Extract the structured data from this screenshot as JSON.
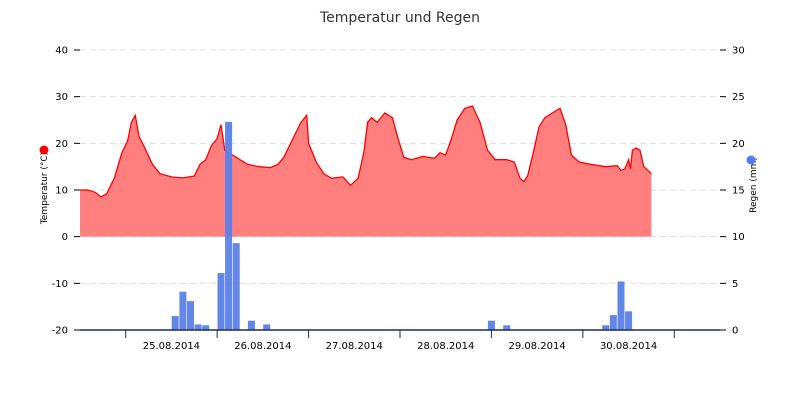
{
  "chart_data": {
    "type": "area+bar",
    "title": "Temperatur und Regen",
    "y_left": {
      "label": "Temperatur (°C)",
      "min": -20,
      "max": 40,
      "ticks": [
        -20,
        -10,
        0,
        10,
        20,
        30,
        40
      ],
      "marker_color": "#ff0000"
    },
    "y_right": {
      "label": "Regen (mm)",
      "min": 0,
      "max": 30,
      "ticks": [
        0,
        5,
        10,
        15,
        20,
        25,
        30
      ],
      "marker_color": "#4f7cf0"
    },
    "x_range": [
      "2014-08-24T12:00",
      "2014-08-31T12:00"
    ],
    "x_tick_labels": [
      "25.08.2014",
      "26.08.2014",
      "27.08.2014",
      "28.08.2014",
      "29.08.2014",
      "30.08.2014"
    ],
    "grid": true,
    "series": [
      {
        "name": "Temperatur",
        "kind": "area",
        "color": "#ff0000",
        "fill": "#ff7f7f",
        "unit": "°C",
        "points": [
          [
            "24.08 12:00",
            10.0
          ],
          [
            "24.08 14:00",
            10.0
          ],
          [
            "24.08 16:00",
            9.5
          ],
          [
            "24.08 17:30",
            8.5
          ],
          [
            "24.08 19:00",
            9.2
          ],
          [
            "24.08 21:00",
            12.5
          ],
          [
            "24.08 23:00",
            18.0
          ],
          [
            "25.08 00:30",
            20.5
          ],
          [
            "25.08 01:30",
            24.5
          ],
          [
            "25.08 02:30",
            26.0
          ],
          [
            "25.08 03:30",
            21.5
          ],
          [
            "25.08 05:00",
            19.0
          ],
          [
            "25.08 07:00",
            15.5
          ],
          [
            "25.08 09:00",
            13.5
          ],
          [
            "25.08 12:00",
            12.8
          ],
          [
            "25.08 15:00",
            12.6
          ],
          [
            "25.08 18:00",
            13.0
          ],
          [
            "25.08 19:30",
            15.5
          ],
          [
            "25.08 21:00",
            16.5
          ],
          [
            "25.08 22:30",
            19.5
          ],
          [
            "26.08 00:00",
            21.0
          ],
          [
            "26.08 01:00",
            24.0
          ],
          [
            "26.08 02:00",
            18.5
          ],
          [
            "26.08 04:00",
            17.5
          ],
          [
            "26.08 06:00",
            16.5
          ],
          [
            "26.08 08:00",
            15.5
          ],
          [
            "26.08 11:00",
            15.0
          ],
          [
            "26.08 14:00",
            14.8
          ],
          [
            "26.08 16:00",
            15.5
          ],
          [
            "26.08 17:30",
            17.0
          ],
          [
            "26.08 19:00",
            19.5
          ],
          [
            "26.08 20:30",
            22.0
          ],
          [
            "26.08 22:00",
            24.5
          ],
          [
            "26.08 23:30",
            26.0
          ],
          [
            "27.08 00:00",
            20.0
          ],
          [
            "27.08 02:00",
            16.0
          ],
          [
            "27.08 04:00",
            13.5
          ],
          [
            "27.08 06:00",
            12.5
          ],
          [
            "27.08 09:00",
            12.8
          ],
          [
            "27.08 11:00",
            11.0
          ],
          [
            "27.08 13:00",
            12.5
          ],
          [
            "27.08 14:30",
            18.0
          ],
          [
            "27.08 15:30",
            24.5
          ],
          [
            "27.08 16:30",
            25.5
          ],
          [
            "27.08 18:00",
            24.5
          ],
          [
            "27.08 20:00",
            26.5
          ],
          [
            "27.08 22:00",
            25.5
          ],
          [
            "27.08 23:30",
            21.0
          ],
          [
            "28.08 01:00",
            17.0
          ],
          [
            "28.08 03:00",
            16.5
          ],
          [
            "28.08 06:00",
            17.2
          ],
          [
            "28.08 09:00",
            16.8
          ],
          [
            "28.08 10:30",
            18.0
          ],
          [
            "28.08 12:00",
            17.5
          ],
          [
            "28.08 13:30",
            21.0
          ],
          [
            "28.08 15:00",
            25.0
          ],
          [
            "28.08 17:00",
            27.5
          ],
          [
            "28.08 19:00",
            28.0
          ],
          [
            "28.08 21:00",
            24.5
          ],
          [
            "28.08 23:00",
            18.5
          ],
          [
            "29.08 01:00",
            16.5
          ],
          [
            "29.08 04:00",
            16.5
          ],
          [
            "29.08 06:00",
            16.0
          ],
          [
            "29.08 07:30",
            12.5
          ],
          [
            "29.08 08:30",
            11.8
          ],
          [
            "29.08 09:30",
            13.0
          ],
          [
            "29.08 11:00",
            18.0
          ],
          [
            "29.08 12:30",
            23.5
          ],
          [
            "29.08 14:00",
            25.5
          ],
          [
            "29.08 16:00",
            26.5
          ],
          [
            "29.08 18:00",
            27.5
          ],
          [
            "29.08 19:30",
            24.0
          ],
          [
            "29.08 21:00",
            17.5
          ],
          [
            "29.08 23:00",
            16.0
          ],
          [
            "30.08 02:00",
            15.5
          ],
          [
            "30.08 06:00",
            15.0
          ],
          [
            "30.08 09:00",
            15.2
          ],
          [
            "30.08 10:00",
            14.2
          ],
          [
            "30.08 11:00",
            14.5
          ],
          [
            "30.08 12:00",
            16.5
          ],
          [
            "30.08 12:30",
            14.5
          ],
          [
            "30.08 13:00",
            18.5
          ],
          [
            "30.08 14:00",
            19.0
          ],
          [
            "30.08 15:00",
            18.5
          ],
          [
            "30.08 16:00",
            15.0
          ],
          [
            "30.08 18:00",
            13.5
          ]
        ]
      },
      {
        "name": "Regen",
        "kind": "bar",
        "color": "#5b7fe8",
        "unit": "mm",
        "bars": [
          [
            "25.08 13:00",
            1.5
          ],
          [
            "25.08 15:00",
            4.1
          ],
          [
            "25.08 17:00",
            3.1
          ],
          [
            "25.08 19:00",
            0.6
          ],
          [
            "25.08 21:00",
            0.5
          ],
          [
            "26.08 01:00",
            6.1
          ],
          [
            "26.08 03:00",
            22.3
          ],
          [
            "26.08 05:00",
            9.3
          ],
          [
            "26.08 09:00",
            1.0
          ],
          [
            "26.08 13:00",
            0.6
          ],
          [
            "29.08 00:00",
            1.0
          ],
          [
            "29.08 04:00",
            0.5
          ],
          [
            "30.08 06:00",
            0.5
          ],
          [
            "30.08 08:00",
            1.6
          ],
          [
            "30.08 10:00",
            5.2
          ],
          [
            "30.08 12:00",
            2.0
          ]
        ]
      }
    ]
  }
}
